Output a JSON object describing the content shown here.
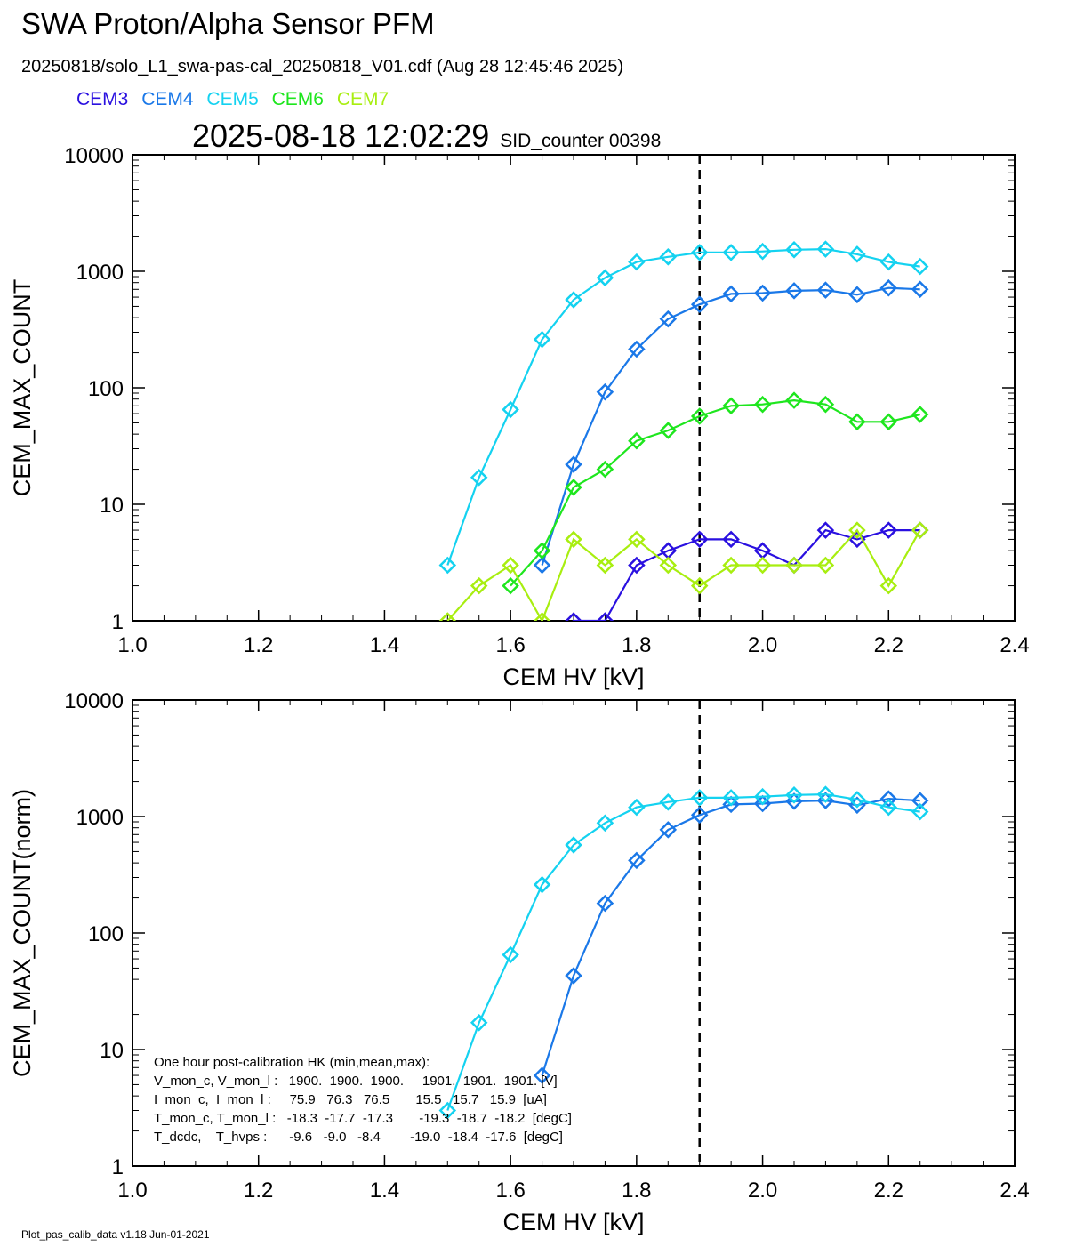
{
  "header": {
    "title": "SWA Proton/Alpha Sensor PFM",
    "file": "20250818/solo_L1_swa-pas-cal_20250818_V01.cdf  (Aug 28 12:45:46 2025)",
    "timestamp": "2025-08-18 12:02:29",
    "sid": "SID_counter 00398"
  },
  "legend": [
    {
      "name": "CEM3",
      "color": "#2a10e0"
    },
    {
      "name": "CEM4",
      "color": "#1a78e8"
    },
    {
      "name": "CEM5",
      "color": "#14d2f0"
    },
    {
      "name": "CEM6",
      "color": "#1ee61e"
    },
    {
      "name": "CEM7",
      "color": "#a8ee10"
    }
  ],
  "footer": "Plot_pas_calib_data v1.18 Jun-01-2021",
  "hk_box": [
    "One hour post-calibration HK (min,mean,max):",
    "V_mon_c, V_mon_l :   1900.  1900.  1900.     1901.  1901.  1901. [V]",
    "I_mon_c,  I_mon_l :     75.9   76.3   76.5       15.5   15.7   15.9  [uA]",
    "T_mon_c, T_mon_l :   -18.3  -17.7  -17.3       -19.3  -18.7  -18.2  [degC]",
    "T_dcdc,    T_hvps :      -9.6   -9.0   -8.4        -19.0  -18.4  -17.6  [degC]"
  ],
  "chart_data": [
    {
      "type": "line",
      "xlabel": "CEM HV [kV]",
      "ylabel": "CEM_MAX_COUNT",
      "xlim": [
        1.0,
        2.4
      ],
      "ylim": [
        1,
        10000
      ],
      "yscale": "log",
      "x_ticks": [
        "1.0",
        "1.2",
        "1.4",
        "1.6",
        "1.8",
        "2.0",
        "2.2",
        "2.4"
      ],
      "y_ticks": [
        "1",
        "10",
        "100",
        "1000",
        "10000"
      ],
      "vline": 1.9,
      "series": [
        {
          "name": "CEM3",
          "color": "#2a10e0",
          "x": [
            1.65,
            1.7,
            1.75,
            1.8,
            1.85,
            1.9,
            1.95,
            2.0,
            2.05,
            2.1,
            2.15,
            2.2,
            2.25
          ],
          "values": [
            0.6,
            1,
            1,
            3,
            4,
            5,
            5,
            4,
            3,
            6,
            5,
            6,
            6
          ]
        },
        {
          "name": "CEM4",
          "color": "#1a78e8",
          "x": [
            1.65,
            1.7,
            1.75,
            1.8,
            1.85,
            1.9,
            1.95,
            2.0,
            2.05,
            2.1,
            2.15,
            2.2,
            2.25
          ],
          "values": [
            3,
            22,
            92,
            215,
            390,
            520,
            640,
            650,
            680,
            690,
            630,
            720,
            700
          ]
        },
        {
          "name": "CEM5",
          "color": "#14d2f0",
          "x": [
            1.5,
            1.55,
            1.6,
            1.65,
            1.7,
            1.75,
            1.8,
            1.85,
            1.9,
            1.95,
            2.0,
            2.05,
            2.1,
            2.15,
            2.2,
            2.25
          ],
          "values": [
            3,
            17,
            65,
            260,
            570,
            880,
            1200,
            1330,
            1450,
            1450,
            1480,
            1530,
            1550,
            1400,
            1200,
            1100
          ]
        },
        {
          "name": "CEM6",
          "color": "#1ee61e",
          "x": [
            1.6,
            1.65,
            1.7,
            1.75,
            1.8,
            1.85,
            1.9,
            1.95,
            2.0,
            2.05,
            2.1,
            2.15,
            2.2,
            2.25
          ],
          "values": [
            2,
            4,
            14,
            20,
            35,
            43,
            57,
            70,
            72,
            78,
            72,
            51,
            51,
            59
          ]
        },
        {
          "name": "CEM7",
          "color": "#a8ee10",
          "x": [
            1.5,
            1.55,
            1.6,
            1.65,
            1.7,
            1.75,
            1.8,
            1.85,
            1.9,
            1.95,
            2.0,
            2.05,
            2.1,
            2.15,
            2.2,
            2.25
          ],
          "values": [
            1,
            2,
            3,
            1,
            5,
            3,
            5,
            3,
            2,
            3,
            3,
            3,
            3,
            6,
            2,
            6
          ]
        }
      ]
    },
    {
      "type": "line",
      "xlabel": "CEM HV [kV]",
      "ylabel": "CEM_MAX_COUNT(norm)",
      "xlim": [
        1.0,
        2.4
      ],
      "ylim": [
        1,
        10000
      ],
      "yscale": "log",
      "x_ticks": [
        "1.0",
        "1.2",
        "1.4",
        "1.6",
        "1.8",
        "2.0",
        "2.2",
        "2.4"
      ],
      "y_ticks": [
        "1",
        "10",
        "100",
        "1000",
        "10000"
      ],
      "vline": 1.9,
      "series": [
        {
          "name": "CEM4",
          "color": "#1a78e8",
          "x": [
            1.65,
            1.7,
            1.75,
            1.8,
            1.85,
            1.9,
            1.95,
            2.0,
            2.05,
            2.1,
            2.15,
            2.2,
            2.25
          ],
          "values": [
            6,
            43,
            180,
            420,
            770,
            1030,
            1270,
            1290,
            1350,
            1370,
            1250,
            1420,
            1370
          ]
        },
        {
          "name": "CEM5",
          "color": "#14d2f0",
          "x": [
            1.5,
            1.55,
            1.6,
            1.65,
            1.7,
            1.75,
            1.8,
            1.85,
            1.9,
            1.95,
            2.0,
            2.05,
            2.1,
            2.15,
            2.2,
            2.25
          ],
          "values": [
            3,
            17,
            65,
            260,
            570,
            880,
            1200,
            1330,
            1450,
            1450,
            1480,
            1530,
            1550,
            1400,
            1200,
            1100
          ]
        }
      ]
    }
  ]
}
